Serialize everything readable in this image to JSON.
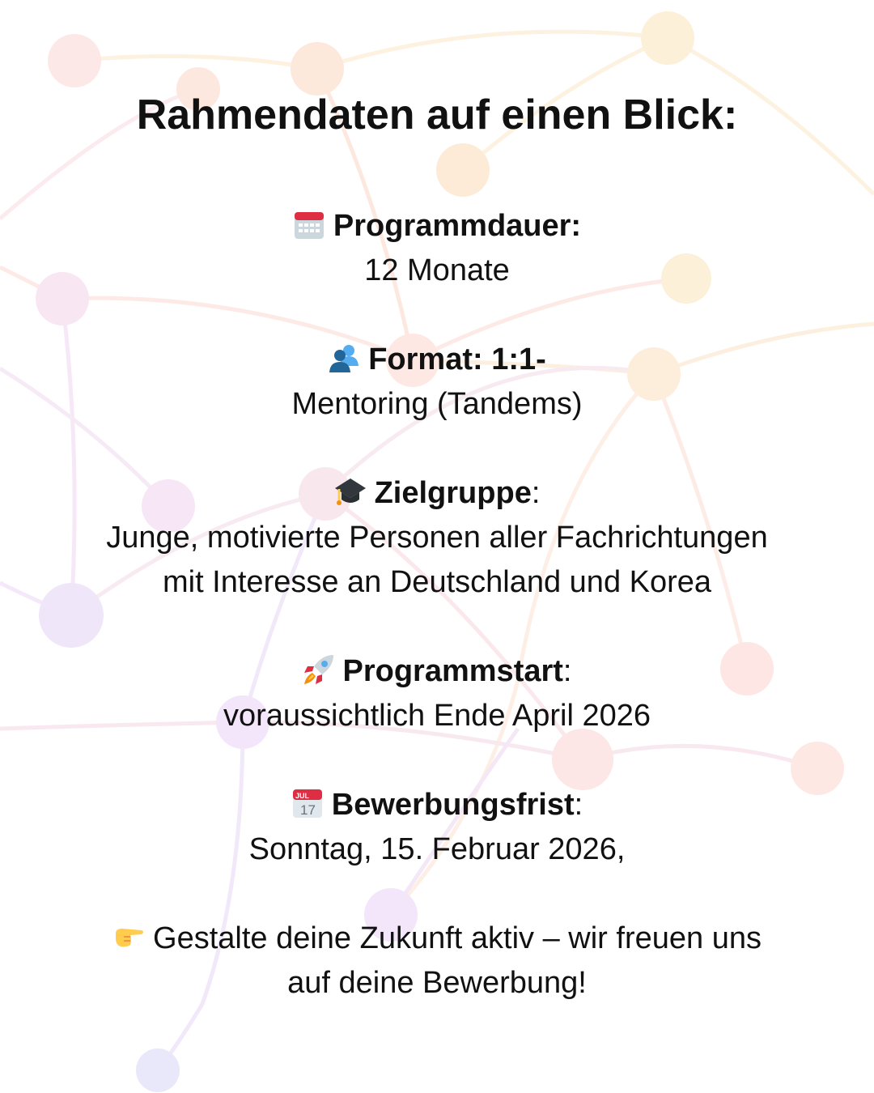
{
  "title": "Rahmendaten auf einen Blick:",
  "sections": [
    {
      "icon": "calendar-icon",
      "heading": "Programmdauer:",
      "heading_suffix": "",
      "lines": [
        "12 Monate"
      ]
    },
    {
      "icon": "people-icon",
      "heading": "Format: 1:1-",
      "heading_suffix": "",
      "lines": [
        "Mentoring (Tandems)"
      ]
    },
    {
      "icon": "graduation-cap-icon",
      "heading": "Zielgruppe",
      "heading_suffix": ":",
      "lines": [
        "Junge, motivierte Personen aller Fachrichtungen",
        "mit Interesse an Deutschland und Korea"
      ]
    },
    {
      "icon": "rocket-icon",
      "heading": "Programmstart",
      "heading_suffix": ":",
      "lines": [
        "voraussichtlich Ende April 2026"
      ]
    },
    {
      "icon": "date-calendar-icon",
      "heading": "Bewerbungsfrist",
      "heading_suffix": ":",
      "lines": [
        "Sonntag, 15. Februar 2026,"
      ]
    }
  ],
  "date_icon_text": {
    "month": "JUL",
    "day": "17"
  },
  "closing": {
    "icon": "pointing-hand-icon",
    "lines": [
      "Gestalte deine Zukunft aktiv – wir freuen uns",
      "auf deine Bewerbung!"
    ]
  },
  "colors": {
    "text": "#111111",
    "background": "#ffffff",
    "network_warm": "#fde8dc",
    "network_cool": "#f0e6fa"
  }
}
